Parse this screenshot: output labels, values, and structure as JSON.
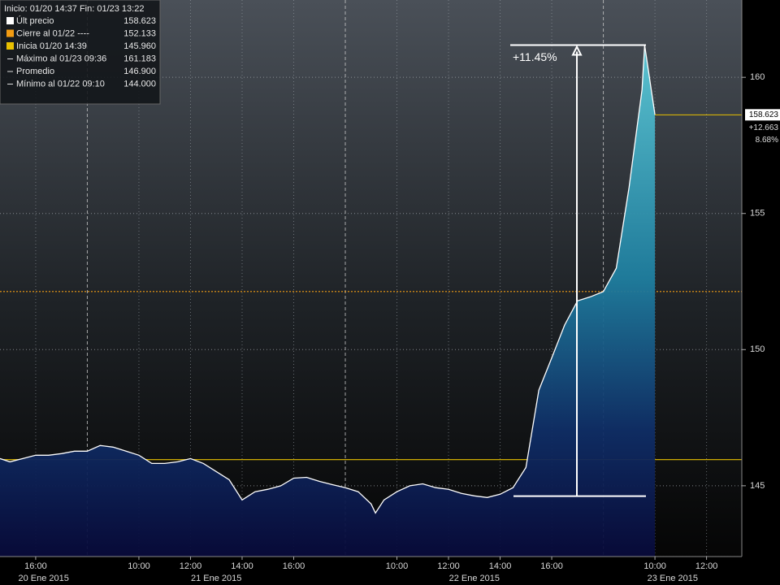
{
  "chart_data": {
    "type": "area",
    "header": "Inicio: 01/20 14:37 Fin: 01/23 13:22",
    "legend": [
      {
        "name": "Últ precio",
        "value": 158.623,
        "color": "#ffffff"
      },
      {
        "name": "Cierre al 01/22 ----",
        "value": 152.133,
        "color": "#f39c12",
        "line_style": "dotted"
      },
      {
        "name": "Inicia 01/20 14:39",
        "value": 145.96,
        "value_label": "145.960",
        "color": "#e8c000",
        "line_style": "solid"
      },
      {
        "name": "Máximo al 01/23 09:36",
        "value": 161.183
      },
      {
        "name": "Promedio",
        "value": 146.9,
        "value_label": "146.900"
      },
      {
        "name": "Mínimo al 01/22 09:10",
        "value": 144,
        "value_label": "144.000"
      }
    ],
    "last_tag": {
      "change": "+12.663",
      "change_pct": "8.68%"
    },
    "annotation": {
      "text": "+11.45%",
      "from": 144.62,
      "to": 161.183
    },
    "x": [
      "01/20 14:37",
      "01/20 15:00",
      "01/20 15:30",
      "01/20 16:00",
      "01/20 16:30",
      "01/20 17:00",
      "01/20 17:30",
      "01/20 18:00",
      "01/21 08:30",
      "01/21 09:00",
      "01/21 09:30",
      "01/21 10:00",
      "01/21 10:30",
      "01/21 11:00",
      "01/21 11:30",
      "01/21 12:00",
      "01/21 12:30",
      "01/21 13:00",
      "01/21 13:30",
      "01/21 14:00",
      "01/21 14:30",
      "01/21 15:00",
      "01/21 15:30",
      "01/21 16:00",
      "01/21 16:30",
      "01/21 17:00",
      "01/21 17:30",
      "01/21 18:00",
      "01/22 08:30",
      "01/22 09:00",
      "01/22 09:10",
      "01/22 09:30",
      "01/22 10:00",
      "01/22 10:30",
      "01/22 11:00",
      "01/22 11:30",
      "01/22 12:00",
      "01/22 12:30",
      "01/22 13:00",
      "01/22 13:30",
      "01/22 14:00",
      "01/22 14:30",
      "01/22 15:00",
      "01/22 15:30",
      "01/22 16:00",
      "01/22 16:30",
      "01/22 17:00",
      "01/22 17:30",
      "01/22 18:00",
      "01/23 08:30",
      "01/23 09:00",
      "01/23 09:30",
      "01/23 09:36",
      "01/23 10:00"
    ],
    "series": [
      {
        "name": "Últ precio",
        "color": "#ffffff",
        "values": [
          146.0,
          145.88,
          146.0,
          146.12,
          146.12,
          146.18,
          146.27,
          146.27,
          146.48,
          146.42,
          146.27,
          146.12,
          145.82,
          145.82,
          145.88,
          146.0,
          145.82,
          145.52,
          145.22,
          144.48,
          144.78,
          144.87,
          145.0,
          145.28,
          145.31,
          145.16,
          145.04,
          144.93,
          144.78,
          144.33,
          144.0,
          144.48,
          144.78,
          145.0,
          145.07,
          144.93,
          144.87,
          144.72,
          144.63,
          144.57,
          144.69,
          144.93,
          145.67,
          148.51,
          149.7,
          150.9,
          151.79,
          151.94,
          152.13,
          152.99,
          155.97,
          159.55,
          161.183,
          158.623
        ]
      }
    ],
    "xlim": [
      "01/20 14:37",
      "01/23 13:22"
    ],
    "xticks": [
      {
        "value": "01/20 16:00",
        "label": "16:00"
      },
      {
        "value": "01/21 10:00",
        "label": "10:00"
      },
      {
        "value": "01/21 12:00",
        "label": "12:00"
      },
      {
        "value": "01/21 14:00",
        "label": "14:00"
      },
      {
        "value": "01/21 16:00",
        "label": "16:00"
      },
      {
        "value": "01/22 10:00",
        "label": "10:00"
      },
      {
        "value": "01/22 12:00",
        "label": "12:00"
      },
      {
        "value": "01/22 14:00",
        "label": "14:00"
      },
      {
        "value": "01/22 16:00",
        "label": "16:00"
      },
      {
        "value": "01/23 10:00",
        "label": "10:00"
      },
      {
        "value": "01/23 12:00",
        "label": "12:00"
      }
    ],
    "day_labels": [
      {
        "value": "01/20",
        "label": "20 Ene 2015"
      },
      {
        "value": "01/21",
        "label": "21 Ene 2015"
      },
      {
        "value": "01/22",
        "label": "22 Ene 2015"
      },
      {
        "value": "01/23",
        "label": "23 Ene 2015"
      }
    ],
    "ylim": [
      142.4,
      162.84
    ],
    "yticks": [
      145,
      150,
      155,
      160
    ],
    "grid": true
  }
}
